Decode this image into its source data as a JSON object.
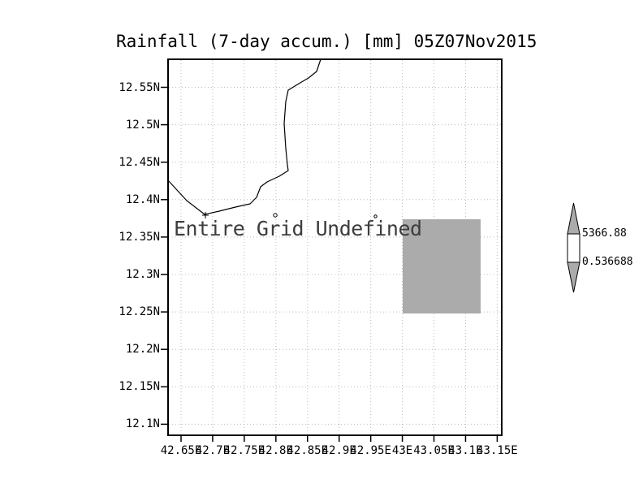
{
  "title": "Rainfall (7-day accum.) [mm] 05Z07Nov2015",
  "map": {
    "message": "Entire Grid Undefined",
    "lat_labels": [
      "12.55N",
      "12.5N",
      "12.45N",
      "12.4N",
      "12.35N",
      "12.3N",
      "12.25N",
      "12.2N",
      "12.15N",
      "12.1N"
    ],
    "lon_labels": [
      "42.65E",
      "42.7E",
      "42.75E",
      "42.8E",
      "42.85E",
      "42.9E",
      "42.95E",
      "43E",
      "43.05E",
      "43.1E",
      "43.15E"
    ]
  },
  "colorbar": {
    "max_label": "5366.88",
    "min_label": "0.536688",
    "arrow_fill": "#ababab"
  },
  "colors": {
    "shaded_region": "#ababab",
    "grid_line": "#bbbbbb",
    "frame": "#000000",
    "coastline": "#000000"
  },
  "chart_data": {
    "type": "heatmap",
    "title": "Rainfall (7-day accum.) [mm] 05Z07Nov2015",
    "xlabel": "",
    "ylabel": "",
    "x_ticks": [
      42.65,
      42.7,
      42.75,
      42.8,
      42.85,
      42.9,
      42.95,
      43.0,
      43.05,
      43.1,
      43.15
    ],
    "y_ticks": [
      12.1,
      12.15,
      12.2,
      12.25,
      12.3,
      12.35,
      12.4,
      12.45,
      12.5,
      12.55
    ],
    "xlim": [
      42.63,
      43.16
    ],
    "ylim": [
      12.085,
      12.59
    ],
    "grid": true,
    "annotation": "Entire Grid Undefined",
    "colorbar_labels": [
      0.536688,
      5366.88
    ],
    "legend_position": "right",
    "shaded_cells": [
      {
        "lon_min": 43.0,
        "lon_max": 43.125,
        "lat_min": 12.25,
        "lat_max": 12.375,
        "value": "undefined-range fill"
      }
    ]
  }
}
